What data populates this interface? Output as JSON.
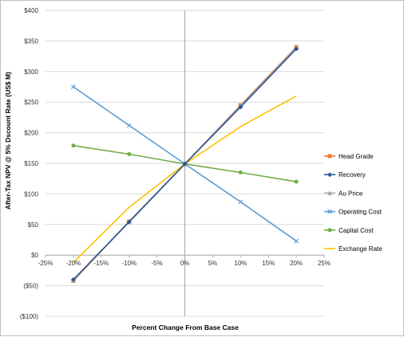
{
  "chart_data": {
    "type": "line",
    "title": "",
    "xlabel": "Percent Change From Base Case",
    "ylabel": "After-Tax NPV @ 5% Dscount Rate (US$ M)",
    "x_ticks": [
      "-25%",
      "-20%",
      "-15%",
      "-10%",
      "-5%",
      "0%",
      "5%",
      "10%",
      "15%",
      "20%",
      "25%"
    ],
    "x_tick_values": [
      -25,
      -20,
      -15,
      -10,
      -5,
      0,
      5,
      10,
      15,
      20,
      25
    ],
    "y_ticks": [
      "$400",
      "$350",
      "$300",
      "$250",
      "$200",
      "$150",
      "$100",
      "$50",
      "$0",
      "($50)",
      "($100)"
    ],
    "y_tick_values": [
      400,
      350,
      300,
      250,
      200,
      150,
      100,
      50,
      0,
      -50,
      -100
    ],
    "negative_tick_color": "#c00000",
    "xlim": [
      -25,
      25
    ],
    "ylim": [
      -100,
      400
    ],
    "grid": "horizontal",
    "legend_position": "right",
    "x": [
      -20,
      -10,
      0,
      10,
      20
    ],
    "series": [
      {
        "name": "Head Grade",
        "color": "#ed7d31",
        "marker": "square",
        "values": [
          -42,
          55,
          149,
          245,
          340
        ]
      },
      {
        "name": "Recovery",
        "color": "#2e5597",
        "marker": "diamond",
        "values": [
          -40,
          54,
          149,
          242,
          337
        ]
      },
      {
        "name": "Au Price",
        "color": "#a5a5a5",
        "marker": "triangle",
        "values": [
          -41,
          55,
          149,
          244,
          339
        ]
      },
      {
        "name": "Operating Cost",
        "color": "#5b9bd5",
        "marker": "x",
        "values": [
          275,
          212,
          149,
          87,
          23
        ]
      },
      {
        "name": "Capital Cost",
        "color": "#70ad47",
        "marker": "circle",
        "values": [
          179,
          165,
          149,
          135,
          120
        ]
      },
      {
        "name": "Exchange Rate",
        "color": "#ffc000",
        "marker": "none",
        "values": [
          -12,
          78,
          149,
          210,
          260
        ]
      }
    ]
  }
}
